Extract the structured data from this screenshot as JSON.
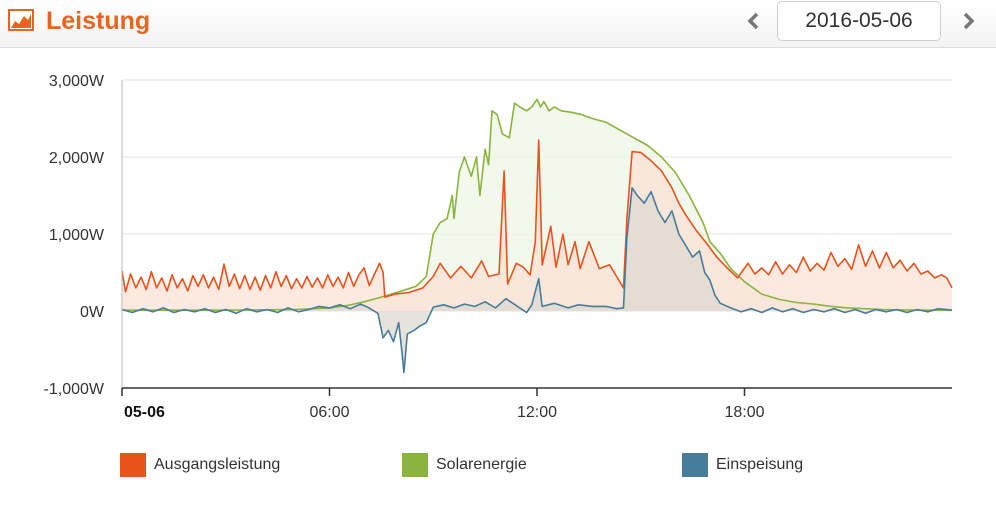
{
  "header": {
    "title": "Leistung",
    "date": "2016-05-06",
    "accent_color": "#e8641f",
    "icon": "area-chart-icon",
    "prev_icon": "chevron-left-icon",
    "next_icon": "chevron-right-icon"
  },
  "chart_data": {
    "type": "area",
    "x_unit": "hours",
    "x_range": [
      0,
      24
    ],
    "ylim": [
      -1000,
      3000
    ],
    "y_ticks": [
      -1000,
      0,
      1000,
      2000,
      3000
    ],
    "y_tick_labels": [
      "-1,000W",
      "0W",
      "1,000W",
      "2,000W",
      "3,000W"
    ],
    "x_ticks": [
      0,
      6,
      12,
      18
    ],
    "x_tick_labels": [
      "05-06",
      "06:00",
      "12:00",
      "18:00"
    ],
    "grid": true,
    "legend_position": "bottom",
    "series": [
      {
        "name": "Ausgangsleistung",
        "color": "#e8531c",
        "fill": "#fbe2d6",
        "points": [
          [
            0,
            520
          ],
          [
            0.1,
            250
          ],
          [
            0.25,
            480
          ],
          [
            0.4,
            300
          ],
          [
            0.55,
            440
          ],
          [
            0.7,
            280
          ],
          [
            0.85,
            510
          ],
          [
            1.0,
            300
          ],
          [
            1.15,
            430
          ],
          [
            1.3,
            260
          ],
          [
            1.45,
            470
          ],
          [
            1.6,
            300
          ],
          [
            1.75,
            420
          ],
          [
            1.9,
            260
          ],
          [
            2.05,
            460
          ],
          [
            2.2,
            320
          ],
          [
            2.35,
            470
          ],
          [
            2.5,
            300
          ],
          [
            2.65,
            440
          ],
          [
            2.8,
            280
          ],
          [
            2.95,
            610
          ],
          [
            3.1,
            320
          ],
          [
            3.25,
            480
          ],
          [
            3.4,
            290
          ],
          [
            3.55,
            460
          ],
          [
            3.7,
            280
          ],
          [
            3.85,
            440
          ],
          [
            4.0,
            270
          ],
          [
            4.15,
            460
          ],
          [
            4.3,
            300
          ],
          [
            4.45,
            510
          ],
          [
            4.6,
            320
          ],
          [
            4.75,
            460
          ],
          [
            4.9,
            290
          ],
          [
            5.05,
            420
          ],
          [
            5.2,
            300
          ],
          [
            5.35,
            450
          ],
          [
            5.5,
            310
          ],
          [
            5.65,
            430
          ],
          [
            5.8,
            300
          ],
          [
            5.95,
            470
          ],
          [
            6.1,
            320
          ],
          [
            6.25,
            440
          ],
          [
            6.4,
            300
          ],
          [
            6.55,
            500
          ],
          [
            6.7,
            320
          ],
          [
            6.85,
            470
          ],
          [
            7.0,
            560
          ],
          [
            7.15,
            330
          ],
          [
            7.3,
            480
          ],
          [
            7.45,
            620
          ],
          [
            7.55,
            500
          ],
          [
            7.6,
            180
          ],
          [
            7.9,
            220
          ],
          [
            8.3,
            240
          ],
          [
            8.7,
            300
          ],
          [
            9.0,
            450
          ],
          [
            9.2,
            620
          ],
          [
            9.5,
            430
          ],
          [
            9.8,
            580
          ],
          [
            10.1,
            430
          ],
          [
            10.4,
            650
          ],
          [
            10.6,
            450
          ],
          [
            10.9,
            480
          ],
          [
            11.05,
            1820
          ],
          [
            11.15,
            350
          ],
          [
            11.4,
            620
          ],
          [
            11.6,
            570
          ],
          [
            11.8,
            470
          ],
          [
            11.95,
            900
          ],
          [
            12.05,
            2220
          ],
          [
            12.15,
            600
          ],
          [
            12.4,
            1100
          ],
          [
            12.55,
            570
          ],
          [
            12.75,
            1000
          ],
          [
            12.9,
            600
          ],
          [
            13.1,
            900
          ],
          [
            13.25,
            550
          ],
          [
            13.5,
            900
          ],
          [
            13.8,
            550
          ],
          [
            14.1,
            600
          ],
          [
            14.3,
            450
          ],
          [
            14.5,
            300
          ],
          [
            14.6,
            1200
          ],
          [
            14.75,
            2070
          ],
          [
            15.0,
            2060
          ],
          [
            15.3,
            1950
          ],
          [
            15.6,
            1820
          ],
          [
            15.9,
            1600
          ],
          [
            16.1,
            1400
          ],
          [
            16.3,
            1250
          ],
          [
            16.6,
            1050
          ],
          [
            16.9,
            880
          ],
          [
            17.2,
            700
          ],
          [
            17.5,
            560
          ],
          [
            17.8,
            430
          ],
          [
            18.1,
            620
          ],
          [
            18.3,
            480
          ],
          [
            18.5,
            560
          ],
          [
            18.7,
            470
          ],
          [
            18.9,
            640
          ],
          [
            19.1,
            480
          ],
          [
            19.3,
            600
          ],
          [
            19.5,
            500
          ],
          [
            19.7,
            700
          ],
          [
            19.9,
            520
          ],
          [
            20.1,
            620
          ],
          [
            20.3,
            530
          ],
          [
            20.5,
            760
          ],
          [
            20.7,
            580
          ],
          [
            20.9,
            680
          ],
          [
            21.1,
            540
          ],
          [
            21.3,
            860
          ],
          [
            21.5,
            580
          ],
          [
            21.7,
            780
          ],
          [
            21.9,
            560
          ],
          [
            22.1,
            760
          ],
          [
            22.3,
            560
          ],
          [
            22.5,
            660
          ],
          [
            22.7,
            520
          ],
          [
            22.9,
            620
          ],
          [
            23.1,
            480
          ],
          [
            23.3,
            520
          ],
          [
            23.5,
            430
          ],
          [
            23.7,
            470
          ],
          [
            23.85,
            430
          ],
          [
            24.0,
            300
          ]
        ]
      },
      {
        "name": "Solarenergie",
        "color": "#8ab43e",
        "fill": "#eef5e4",
        "points": [
          [
            0,
            10
          ],
          [
            3,
            10
          ],
          [
            5,
            20
          ],
          [
            6,
            40
          ],
          [
            6.5,
            70
          ],
          [
            7,
            120
          ],
          [
            7.5,
            180
          ],
          [
            8,
            250
          ],
          [
            8.5,
            320
          ],
          [
            8.8,
            450
          ],
          [
            9.0,
            1000
          ],
          [
            9.2,
            1150
          ],
          [
            9.4,
            1200
          ],
          [
            9.55,
            1500
          ],
          [
            9.6,
            1200
          ],
          [
            9.75,
            1800
          ],
          [
            9.9,
            2000
          ],
          [
            10.1,
            1750
          ],
          [
            10.25,
            2000
          ],
          [
            10.35,
            1500
          ],
          [
            10.5,
            2100
          ],
          [
            10.6,
            1900
          ],
          [
            10.7,
            2600
          ],
          [
            10.85,
            2550
          ],
          [
            11.0,
            2300
          ],
          [
            11.2,
            2250
          ],
          [
            11.35,
            2700
          ],
          [
            11.5,
            2650
          ],
          [
            11.7,
            2600
          ],
          [
            11.85,
            2650
          ],
          [
            12.0,
            2750
          ],
          [
            12.1,
            2650
          ],
          [
            12.2,
            2720
          ],
          [
            12.35,
            2600
          ],
          [
            12.5,
            2650
          ],
          [
            12.7,
            2600
          ],
          [
            13.0,
            2580
          ],
          [
            13.3,
            2550
          ],
          [
            13.6,
            2500
          ],
          [
            14.0,
            2450
          ],
          [
            14.4,
            2350
          ],
          [
            14.8,
            2250
          ],
          [
            15.2,
            2150
          ],
          [
            15.6,
            2000
          ],
          [
            16.0,
            1800
          ],
          [
            16.4,
            1500
          ],
          [
            16.8,
            1150
          ],
          [
            17.0,
            900
          ],
          [
            17.3,
            750
          ],
          [
            17.6,
            550
          ],
          [
            18.0,
            380
          ],
          [
            18.5,
            220
          ],
          [
            19.0,
            150
          ],
          [
            19.5,
            110
          ],
          [
            20.0,
            90
          ],
          [
            20.5,
            60
          ],
          [
            21,
            40
          ],
          [
            22,
            20
          ],
          [
            23,
            10
          ],
          [
            24,
            10
          ]
        ]
      },
      {
        "name": "Einspeisung",
        "color": "#457d9a",
        "fill": "#dedad2",
        "points": [
          [
            0,
            20
          ],
          [
            0.3,
            -20
          ],
          [
            0.6,
            30
          ],
          [
            0.9,
            -10
          ],
          [
            1.2,
            40
          ],
          [
            1.5,
            -20
          ],
          [
            1.8,
            20
          ],
          [
            2.1,
            -10
          ],
          [
            2.4,
            30
          ],
          [
            2.7,
            -20
          ],
          [
            3.0,
            20
          ],
          [
            3.3,
            -30
          ],
          [
            3.6,
            30
          ],
          [
            3.9,
            -10
          ],
          [
            4.2,
            20
          ],
          [
            4.5,
            -20
          ],
          [
            4.8,
            40
          ],
          [
            5.1,
            -10
          ],
          [
            5.4,
            20
          ],
          [
            5.7,
            60
          ],
          [
            6.0,
            40
          ],
          [
            6.3,
            80
          ],
          [
            6.6,
            30
          ],
          [
            6.9,
            90
          ],
          [
            7.1,
            50
          ],
          [
            7.4,
            -30
          ],
          [
            7.55,
            -350
          ],
          [
            7.7,
            -250
          ],
          [
            7.85,
            -400
          ],
          [
            8.0,
            -150
          ],
          [
            8.1,
            -550
          ],
          [
            8.15,
            -800
          ],
          [
            8.25,
            -300
          ],
          [
            8.45,
            -250
          ],
          [
            8.6,
            -200
          ],
          [
            8.8,
            -150
          ],
          [
            9.0,
            50
          ],
          [
            9.3,
            80
          ],
          [
            9.6,
            40
          ],
          [
            9.9,
            90
          ],
          [
            10.2,
            60
          ],
          [
            10.5,
            120
          ],
          [
            10.8,
            40
          ],
          [
            11.1,
            160
          ],
          [
            11.4,
            70
          ],
          [
            11.7,
            -20
          ],
          [
            11.85,
            80
          ],
          [
            12.05,
            420
          ],
          [
            12.15,
            60
          ],
          [
            12.5,
            100
          ],
          [
            12.9,
            40
          ],
          [
            13.2,
            80
          ],
          [
            13.6,
            60
          ],
          [
            14.0,
            60
          ],
          [
            14.3,
            30
          ],
          [
            14.5,
            40
          ],
          [
            14.6,
            950
          ],
          [
            14.75,
            1600
          ],
          [
            14.9,
            1500
          ],
          [
            15.1,
            1400
          ],
          [
            15.3,
            1550
          ],
          [
            15.5,
            1300
          ],
          [
            15.7,
            1150
          ],
          [
            15.9,
            1300
          ],
          [
            16.1,
            1000
          ],
          [
            16.3,
            850
          ],
          [
            16.5,
            700
          ],
          [
            16.7,
            780
          ],
          [
            16.85,
            500
          ],
          [
            17.0,
            400
          ],
          [
            17.15,
            200
          ],
          [
            17.3,
            100
          ],
          [
            17.6,
            40
          ],
          [
            17.9,
            -10
          ],
          [
            18.2,
            30
          ],
          [
            18.5,
            -20
          ],
          [
            18.8,
            40
          ],
          [
            19.1,
            -10
          ],
          [
            19.4,
            30
          ],
          [
            19.7,
            -20
          ],
          [
            20.0,
            20
          ],
          [
            20.3,
            -10
          ],
          [
            20.6,
            30
          ],
          [
            20.9,
            -20
          ],
          [
            21.2,
            20
          ],
          [
            21.5,
            -30
          ],
          [
            21.8,
            20
          ],
          [
            22.1,
            -10
          ],
          [
            22.4,
            20
          ],
          [
            22.7,
            -20
          ],
          [
            23.0,
            20
          ],
          [
            23.3,
            -10
          ],
          [
            23.6,
            30
          ],
          [
            24.0,
            10
          ]
        ]
      }
    ]
  }
}
